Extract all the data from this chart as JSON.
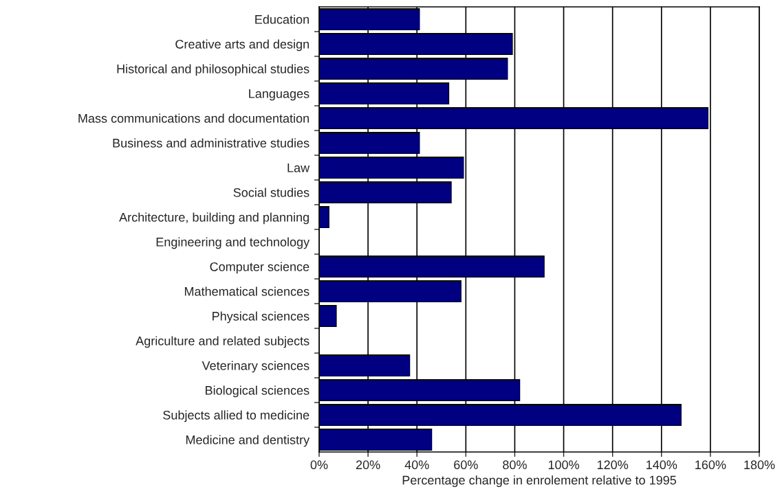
{
  "chart_data": {
    "type": "bar",
    "orientation": "horizontal",
    "categories": [
      "Education",
      "Creative arts and design",
      "Historical and philosophical studies",
      "Languages",
      "Mass communications and documentation",
      "Business and administrative studies",
      "Law",
      "Social studies",
      "Architecture, building and planning",
      "Engineering and technology",
      "Computer science",
      "Mathematical sciences",
      "Physical sciences",
      "Agriculture and related subjects",
      "Veterinary sciences",
      "Biological sciences",
      "Subjects allied to medicine",
      "Medicine and dentistry"
    ],
    "values": [
      41,
      79,
      77,
      53,
      159,
      41,
      59,
      54,
      4,
      null,
      92,
      58,
      7,
      null,
      37,
      82,
      148,
      46
    ],
    "color": "#000080",
    "xlabel": "Percentage change in enrolement relative to 1995",
    "xlim": [
      0,
      180
    ],
    "xticks": [
      {
        "value": 0,
        "label": "0%"
      },
      {
        "value": 20,
        "label": "20%"
      },
      {
        "value": 40,
        "label": "40%"
      },
      {
        "value": 60,
        "label": "60%"
      },
      {
        "value": 80,
        "label": "80%"
      },
      {
        "value": 100,
        "label": "100%"
      },
      {
        "value": 120,
        "label": "120%"
      },
      {
        "value": 140,
        "label": "140%"
      },
      {
        "value": 160,
        "label": "160%"
      },
      {
        "value": 180,
        "label": "180%"
      }
    ],
    "grid": "x"
  }
}
